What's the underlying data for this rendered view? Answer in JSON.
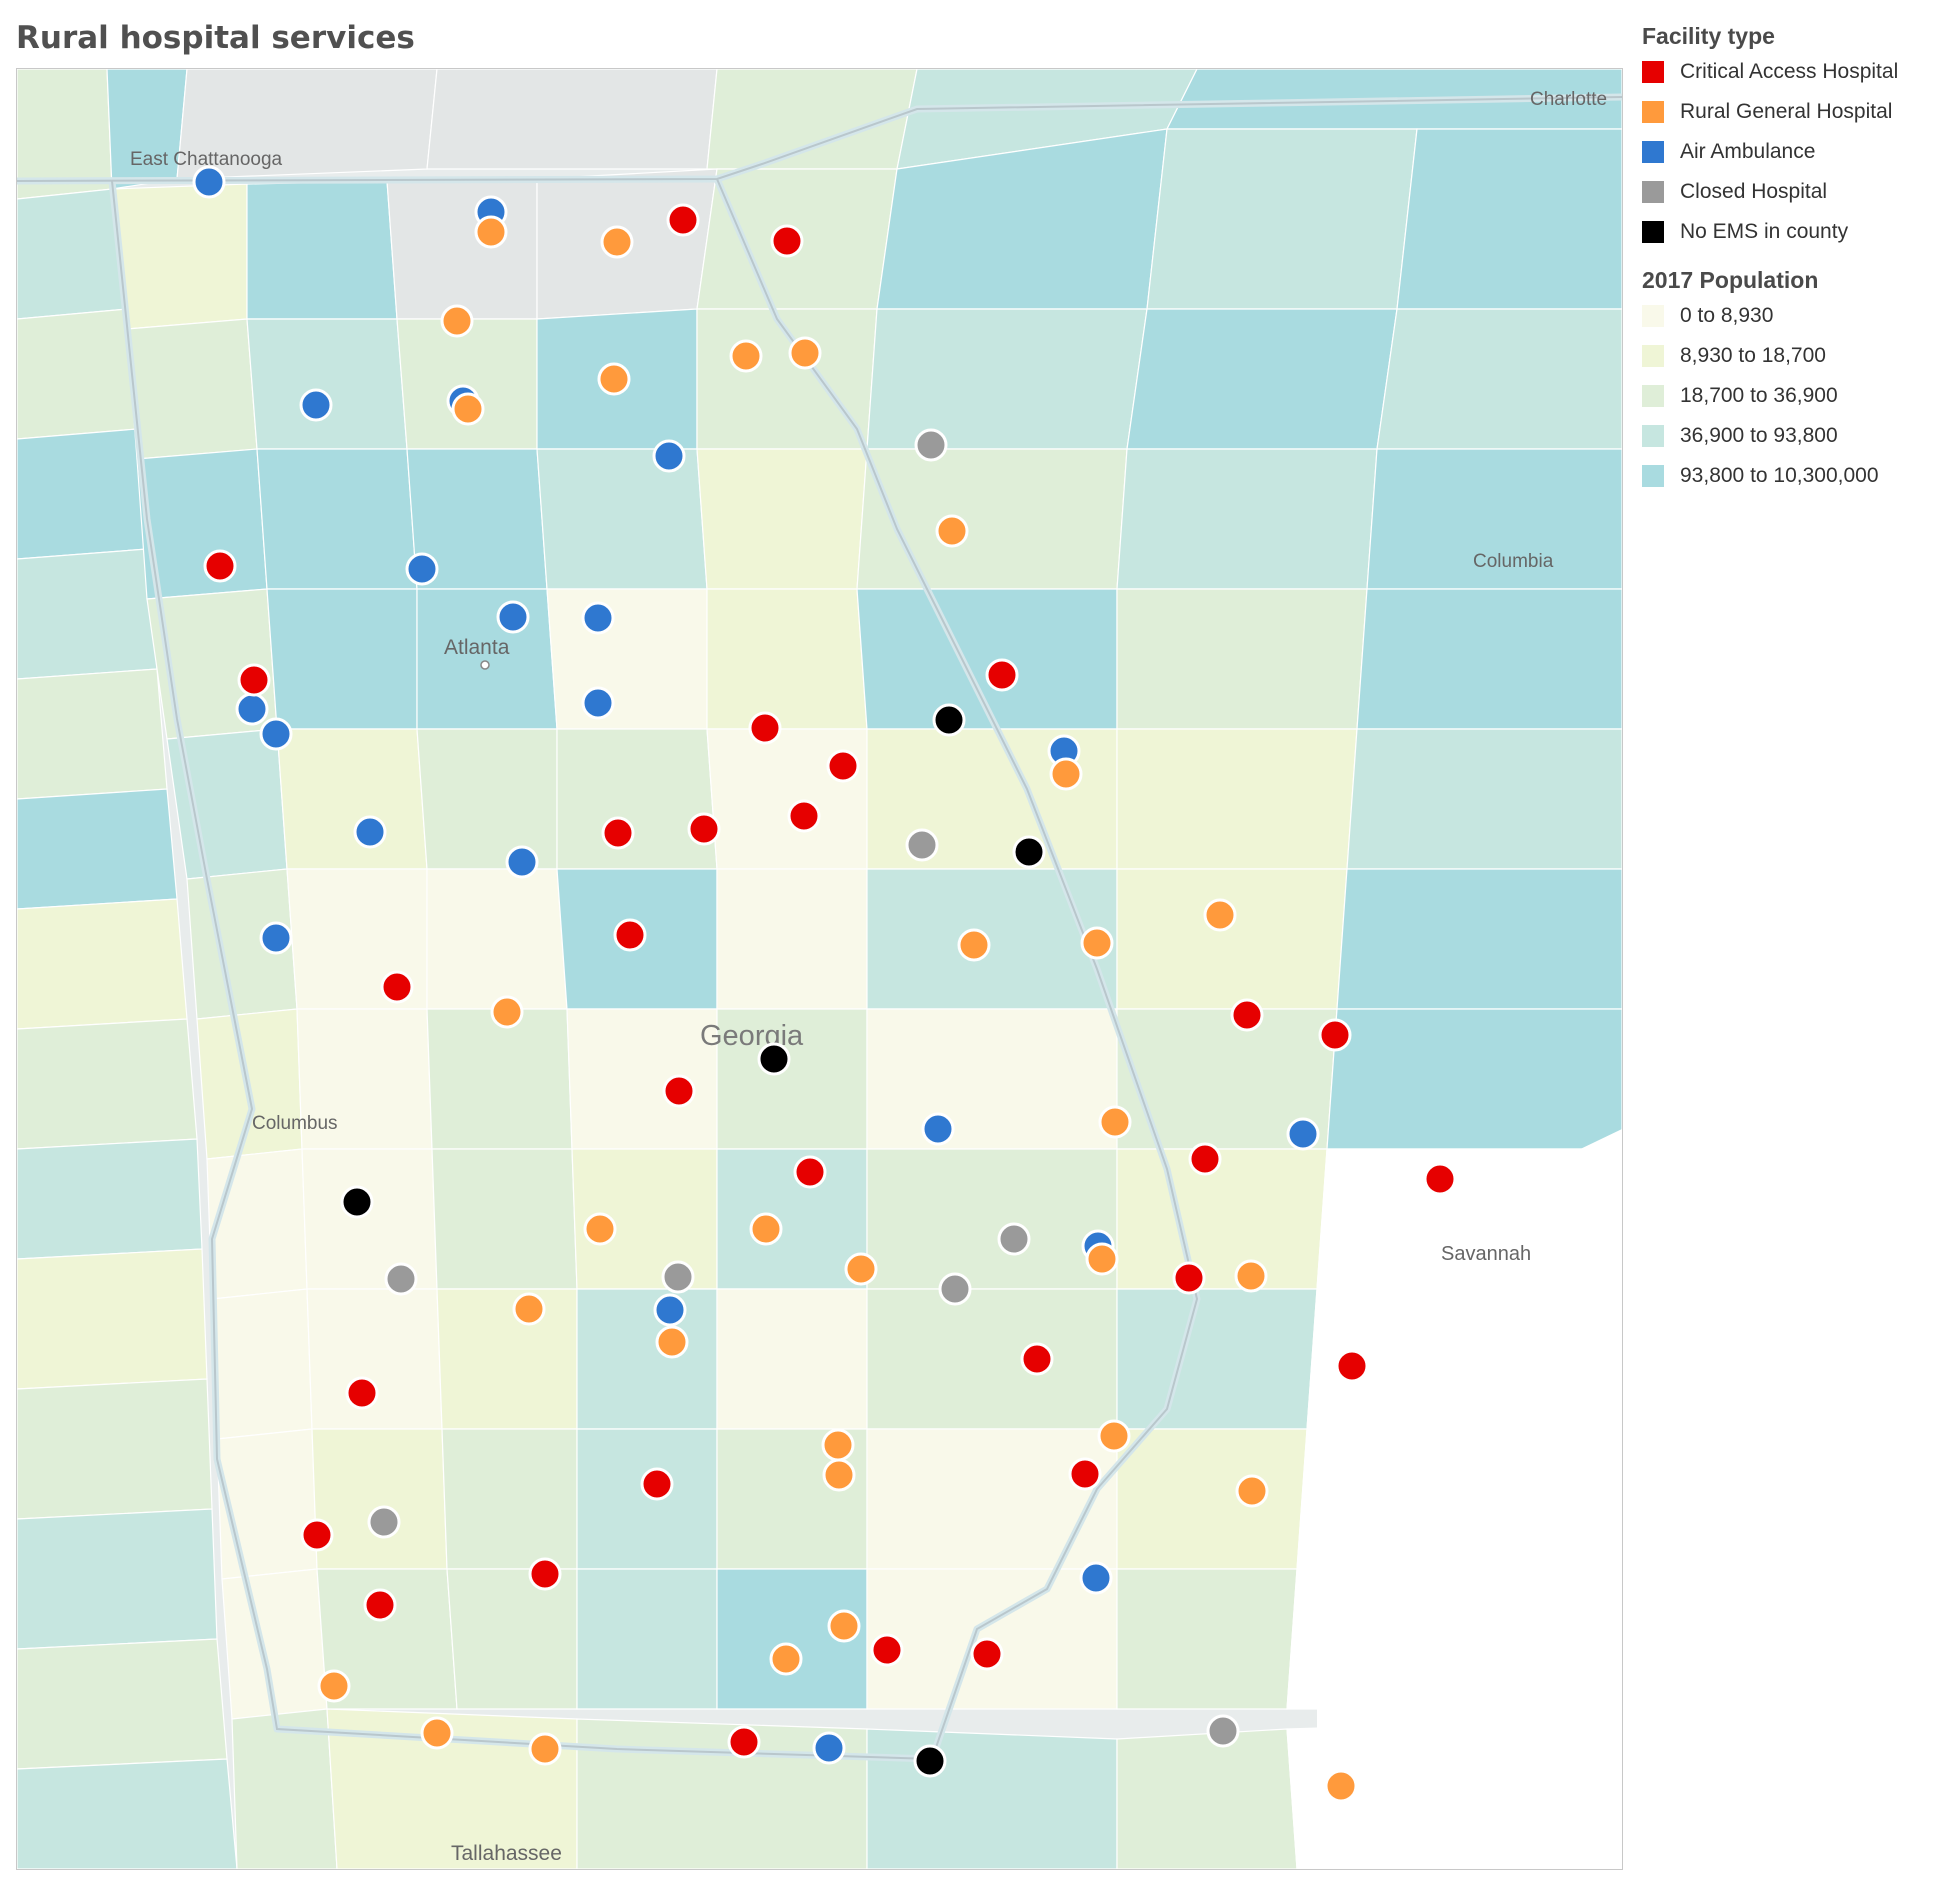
{
  "title": "Rural hospital services",
  "legend": {
    "facility_title": "Facility type",
    "facility_items": [
      {
        "label": "Critical Access Hospital",
        "color": "#e60000"
      },
      {
        "label": "Rural General Hospital",
        "color": "#ff9a3c"
      },
      {
        "label": "Air Ambulance",
        "color": "#2f78d0"
      },
      {
        "label": "Closed Hospital",
        "color": "#9a9a9a"
      },
      {
        "label": "No EMS in county",
        "color": "#000000"
      }
    ],
    "population_title": "2017 Population",
    "population_items": [
      {
        "label": "0 to 8,930",
        "color": "#f9f9ea"
      },
      {
        "label": "8,930 to 18,700",
        "color": "#eff5d6"
      },
      {
        "label": "18,700 to 36,900",
        "color": "#dfeed8"
      },
      {
        "label": "36,900 to 93,800",
        "color": "#c6e6e0"
      },
      {
        "label": "93,800 to 10,300,000",
        "color": "#a9dbe0"
      }
    ]
  },
  "map": {
    "place_labels": [
      "East Chattanooga",
      "Charlotte",
      "Atlanta",
      "Columbia",
      "Georgia",
      "Columbus",
      "Savannah",
      "Tallahassee"
    ]
  }
}
